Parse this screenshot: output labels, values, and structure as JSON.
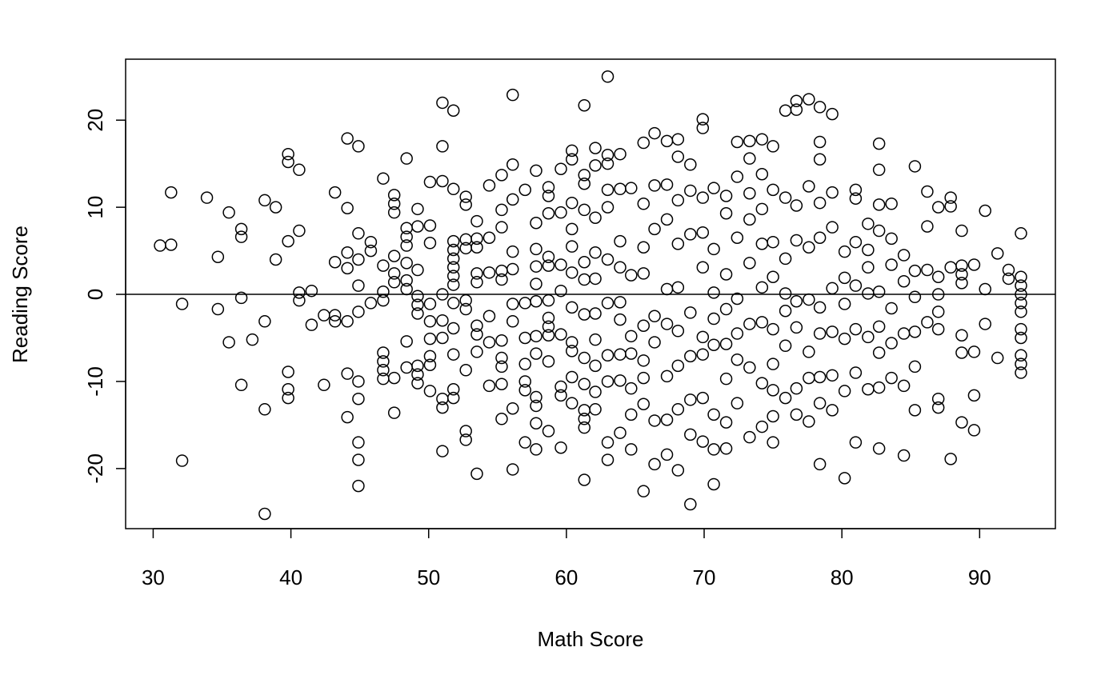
{
  "chart_data": {
    "type": "scatter",
    "xlabel": "Math Score",
    "ylabel": "Reading Score",
    "xlim": [
      28.0,
      95.5
    ],
    "ylim": [
      -26.9,
      27.0
    ],
    "xticks": [
      30,
      40,
      50,
      60,
      70,
      80,
      90
    ],
    "yticks": [
      -20,
      -10,
      0,
      10,
      20
    ],
    "hline": 0,
    "color": "#000000",
    "x": [
      30.5,
      31.3,
      31.3,
      32.1,
      32.1,
      33.9,
      34.7,
      34.7,
      35.5,
      35.5,
      36.4,
      36.4,
      36.4,
      36.4,
      37.2,
      38.1,
      38.1,
      38.1,
      38.1,
      38.9,
      38.9,
      39.8,
      39.8,
      39.8,
      39.8,
      39.8,
      39.8,
      40.6,
      40.6,
      40.6,
      40.6,
      41.5,
      41.5,
      42.4,
      42.4,
      43.2,
      43.2,
      43.2,
      43.2,
      44.1,
      44.1,
      44.1,
      44.1,
      44.1,
      44.1,
      44.1,
      44.9,
      44.9,
      44.9,
      44.9,
      44.9,
      44.9,
      44.9,
      44.9,
      44.9,
      44.9,
      45.8,
      45.8,
      45.8,
      46.7,
      46.7,
      46.7,
      46.7,
      46.7,
      46.7,
      46.7,
      46.7,
      47.5,
      47.5,
      47.5,
      47.5,
      47.5,
      47.5,
      47.5,
      47.5,
      48.4,
      48.4,
      48.4,
      48.4,
      48.4,
      48.4,
      48.4,
      48.4,
      48.4,
      49.2,
      49.2,
      49.2,
      49.2,
      49.2,
      49.2,
      49.2,
      49.2,
      49.2,
      50.1,
      50.1,
      50.1,
      50.1,
      50.1,
      50.1,
      50.1,
      50.1,
      50.1,
      51,
      51,
      51,
      51,
      51,
      51,
      51,
      51,
      51,
      51.8,
      51.8,
      51.8,
      51.8,
      51.8,
      51.8,
      51.8,
      51.8,
      51.8,
      51.8,
      51.8,
      51.8,
      51.8,
      52.7,
      52.7,
      52.7,
      52.7,
      52.7,
      52.7,
      52.7,
      52.7,
      52.7,
      53.5,
      53.5,
      53.5,
      53.5,
      53.5,
      53.5,
      53.5,
      53.5,
      53.5,
      54.4,
      54.4,
      54.4,
      54.4,
      54.4,
      54.4,
      55.3,
      55.3,
      55.3,
      55.3,
      55.3,
      55.3,
      55.3,
      55.3,
      55.3,
      55.3,
      56.1,
      56.1,
      56.1,
      56.1,
      56.1,
      56.1,
      56.1,
      56.1,
      56.1,
      57,
      57,
      57,
      57,
      57,
      57,
      57,
      57.8,
      57.8,
      57.8,
      57.8,
      57.8,
      57.8,
      57.8,
      57.8,
      57.8,
      57.8,
      57.8,
      57.8,
      58.7,
      58.7,
      58.7,
      58.7,
      58.7,
      58.7,
      58.7,
      58.7,
      58.7,
      58.7,
      58.7,
      59.6,
      59.6,
      59.6,
      59.6,
      59.6,
      59.6,
      59.6,
      59.6,
      60.4,
      60.4,
      60.4,
      60.4,
      60.4,
      60.4,
      60.4,
      60.4,
      60.4,
      60.4,
      60.4,
      61.3,
      61.3,
      61.3,
      61.3,
      61.3,
      61.3,
      61.3,
      61.3,
      61.3,
      61.3,
      61.3,
      61.3,
      61.3,
      62.1,
      62.1,
      62.1,
      62.1,
      62.1,
      62.1,
      62.1,
      62.1,
      62.1,
      62.1,
      63,
      63,
      63,
      63,
      63,
      63,
      63,
      63,
      63,
      63,
      63,
      63.9,
      63.9,
      63.9,
      63.9,
      63.9,
      63.9,
      63.9,
      63.9,
      63.9,
      64.7,
      64.7,
      64.7,
      64.7,
      64.7,
      64.7,
      64.7,
      65.6,
      65.6,
      65.6,
      65.6,
      65.6,
      65.6,
      65.6,
      65.6,
      65.6,
      66.4,
      66.4,
      66.4,
      66.4,
      66.4,
      66.4,
      66.4,
      67.3,
      67.3,
      67.3,
      67.3,
      67.3,
      67.3,
      67.3,
      67.3,
      68.1,
      68.1,
      68.1,
      68.1,
      68.1,
      68.1,
      68.1,
      68.1,
      68.1,
      69,
      69,
      69,
      69,
      69,
      69,
      69,
      69,
      69.9,
      69.9,
      69.9,
      69.9,
      69.9,
      69.9,
      69.9,
      69.9,
      69.9,
      70.7,
      70.7,
      70.7,
      70.7,
      70.7,
      70.7,
      70.7,
      70.7,
      71.6,
      71.6,
      71.6,
      71.6,
      71.6,
      71.6,
      71.6,
      71.6,
      72.4,
      72.4,
      72.4,
      72.4,
      72.4,
      72.4,
      72.4,
      73.3,
      73.3,
      73.3,
      73.3,
      73.3,
      73.3,
      73.3,
      73.3,
      74.2,
      74.2,
      74.2,
      74.2,
      74.2,
      74.2,
      74.2,
      74.2,
      75,
      75,
      75,
      75,
      75,
      75,
      75,
      75,
      75,
      75.9,
      75.9,
      75.9,
      75.9,
      75.9,
      75.9,
      75.9,
      76.7,
      76.7,
      76.7,
      76.7,
      76.7,
      76.7,
      76.7,
      76.7,
      77.6,
      77.6,
      77.6,
      77.6,
      77.6,
      77.6,
      77.6,
      78.4,
      78.4,
      78.4,
      78.4,
      78.4,
      78.4,
      78.4,
      78.4,
      78.4,
      78.4,
      79.3,
      79.3,
      79.3,
      79.3,
      79.3,
      79.3,
      79.3,
      80.2,
      80.2,
      80.2,
      80.2,
      80.2,
      80.2,
      81,
      81,
      81,
      81,
      81,
      81,
      81,
      81.9,
      81.9,
      81.9,
      81.9,
      81.9,
      81.9,
      82.7,
      82.7,
      82.7,
      82.7,
      82.7,
      82.7,
      82.7,
      82.7,
      82.7,
      83.6,
      83.6,
      83.6,
      83.6,
      83.6,
      83.6,
      84.5,
      84.5,
      84.5,
      84.5,
      84.5,
      85.3,
      85.3,
      85.3,
      85.3,
      85.3,
      85.3,
      86.2,
      86.2,
      86.2,
      86.2,
      87,
      87,
      87,
      87,
      87,
      87,
      87,
      87.9,
      87.9,
      87.9,
      87.9,
      88.7,
      88.7,
      88.7,
      88.7,
      88.7,
      88.7,
      88.7,
      89.6,
      89.6,
      89.6,
      89.6,
      90.4,
      90.4,
      90.4,
      91.3,
      91.3,
      92.1,
      92.1,
      93,
      93,
      93,
      93,
      93,
      93,
      93,
      93,
      93,
      93,
      93
    ],
    "values": [
      5.6,
      5.7,
      11.7,
      -1.1,
      -19.1,
      11.1,
      4.3,
      -1.7,
      9.4,
      -5.5,
      7.5,
      6.6,
      -0.4,
      -10.4,
      -5.2,
      10.8,
      -3.1,
      -13.2,
      -25.2,
      10,
      4,
      16.1,
      15.2,
      6.1,
      -8.9,
      -10.9,
      -11.9,
      14.3,
      7.3,
      0.2,
      -0.7,
      0.4,
      -3.5,
      -2.4,
      -10.4,
      11.7,
      3.7,
      -2.4,
      -3.1,
      17.9,
      9.9,
      4.8,
      3,
      -3.1,
      -9.1,
      -14.1,
      17,
      7,
      4,
      1,
      -2,
      -10,
      -12,
      -17,
      -19,
      -22,
      6,
      5,
      -1,
      13.3,
      3.3,
      0.3,
      -6.7,
      -7.7,
      -8.7,
      -9.7,
      -0.7,
      11.4,
      10.4,
      9.4,
      4.4,
      2.4,
      1.4,
      -9.6,
      -13.6,
      15.6,
      7.6,
      6.6,
      5.6,
      3.6,
      1.6,
      0.6,
      -5.4,
      -8.4,
      9.8,
      7.8,
      2.8,
      -0.2,
      -1.2,
      -2.2,
      -8.2,
      -9.2,
      -10.2,
      12.9,
      7.9,
      5.9,
      -1.1,
      -3.1,
      -5.1,
      -7.1,
      -8.1,
      -11.1,
      22,
      17,
      13,
      0,
      -3,
      -5,
      -12,
      -13,
      -18,
      21.1,
      12.1,
      6.1,
      5.1,
      4.1,
      3.1,
      2.1,
      1.1,
      -1,
      -3.9,
      -6.9,
      -10.9,
      -11.9,
      11.2,
      10.3,
      6.3,
      5.3,
      -0.7,
      -1.7,
      -8.7,
      -15.7,
      -16.7,
      8.4,
      6.4,
      5.4,
      2.4,
      1.4,
      -3.6,
      -4.6,
      -6.6,
      -20.6,
      12.5,
      6.5,
      2.5,
      -2.5,
      -5.5,
      -10.5,
      13.7,
      9.7,
      7.7,
      2.7,
      1.7,
      -5.3,
      -7.3,
      -8.3,
      -10.3,
      -14.3,
      22.9,
      14.9,
      10.9,
      4.9,
      2.9,
      -1.1,
      -3.1,
      -13.1,
      -20.1,
      12,
      -1,
      -5,
      -8,
      -10,
      -11,
      -17,
      14.2,
      8.2,
      5.2,
      3.2,
      1.2,
      -0.8,
      -4.8,
      -6.8,
      -11.8,
      -12.8,
      -14.8,
      -17.8,
      12.3,
      11.3,
      9.3,
      4.3,
      3.3,
      -0.7,
      -2.7,
      -3.7,
      -4.7,
      -7.7,
      -15.7,
      14.4,
      9.4,
      3.4,
      0.4,
      -4.6,
      -10.6,
      -11.6,
      -17.6,
      16.5,
      15.5,
      10.5,
      7.5,
      5.5,
      2.5,
      -1.5,
      -5.5,
      -6.5,
      -9.5,
      -12.5,
      21.7,
      13.7,
      12.7,
      9.7,
      3.7,
      1.7,
      -2.3,
      -7.3,
      -10.3,
      -13.3,
      -14.3,
      -15.3,
      -21.3,
      16.8,
      14.8,
      8.8,
      4.8,
      1.8,
      -2.2,
      -5.2,
      -8.2,
      -11.2,
      -13.2,
      25,
      16,
      15,
      12,
      10,
      4,
      -1,
      -7,
      -10,
      -17,
      -19,
      16.1,
      12.1,
      6.1,
      3.1,
      -0.9,
      -2.9,
      -6.9,
      -9.9,
      -15.9,
      12.2,
      2.2,
      -4.8,
      -6.8,
      -10.8,
      -13.8,
      -17.8,
      17.4,
      10.4,
      5.4,
      2.4,
      -3.6,
      -7.6,
      -9.6,
      -12.6,
      -22.6,
      18.5,
      12.5,
      7.5,
      -2.5,
      -5.5,
      -14.5,
      -19.5,
      17.6,
      12.6,
      8.6,
      0.6,
      -3.4,
      -9.4,
      -14.4,
      -18.4,
      17.8,
      15.8,
      10.8,
      5.8,
      0.8,
      -4.2,
      -8.2,
      -13.2,
      -20.2,
      14.9,
      11.9,
      6.9,
      -2.1,
      -7.1,
      -12.1,
      -16.1,
      -24.1,
      20.1,
      19.1,
      11.1,
      7.1,
      3.1,
      -4.9,
      -6.9,
      -11.9,
      -16.9,
      12.2,
      5.2,
      0.2,
      -2.8,
      -5.8,
      -13.8,
      -17.8,
      -21.8,
      11.3,
      9.3,
      2.3,
      -1.7,
      -5.7,
      -9.7,
      -14.7,
      -17.7,
      17.5,
      13.5,
      6.5,
      -0.5,
      -4.5,
      -7.5,
      -12.5,
      17.6,
      15.6,
      11.6,
      8.6,
      3.6,
      -3.4,
      -8.4,
      -16.4,
      17.8,
      13.8,
      9.8,
      5.8,
      0.8,
      -3.2,
      -10.2,
      -15.2,
      17,
      12,
      6,
      2,
      -4,
      -8,
      -11,
      -14,
      -17,
      21.1,
      11.1,
      4.1,
      0.1,
      -1.9,
      -5.9,
      -11.9,
      22.2,
      21.2,
      10.2,
      6.2,
      -0.8,
      -3.8,
      -10.8,
      -13.8,
      22.4,
      12.4,
      5.4,
      -0.6,
      -6.6,
      -9.6,
      -14.6,
      21.5,
      17.5,
      15.5,
      10.5,
      6.5,
      -1.5,
      -4.5,
      -9.5,
      -12.5,
      -19.5,
      20.7,
      11.7,
      7.7,
      0.7,
      -4.3,
      -9.3,
      -13.3,
      4.9,
      1.9,
      -1.1,
      -5.1,
      -11.1,
      -21.1,
      12,
      11,
      6,
      1,
      -4,
      -9,
      -17,
      8.1,
      5.1,
      3.1,
      0.1,
      -4.9,
      -10.9,
      17.3,
      14.3,
      10.3,
      7.3,
      0.3,
      -3.7,
      -6.7,
      -10.7,
      -17.7,
      10.4,
      6.4,
      3.4,
      -1.6,
      -5.6,
      -9.6,
      4.5,
      1.5,
      -4.5,
      -10.5,
      -18.5,
      14.7,
      2.7,
      -0.3,
      -4.3,
      -8.3,
      -13.3,
      11.8,
      7.8,
      2.8,
      -3.2,
      10,
      2,
      0,
      -2,
      -4,
      -12,
      -13,
      11.1,
      10.1,
      3.1,
      -18.9,
      7.3,
      3.3,
      2.3,
      1.3,
      -4.7,
      -6.7,
      -14.7,
      3.4,
      -6.6,
      -11.6,
      -15.6,
      9.6,
      0.6,
      -3.4,
      4.7,
      -7.3,
      2.8,
      1.8,
      7,
      2,
      1,
      0,
      -1,
      -2,
      -4,
      -5,
      -7,
      -8,
      -9
    ]
  }
}
